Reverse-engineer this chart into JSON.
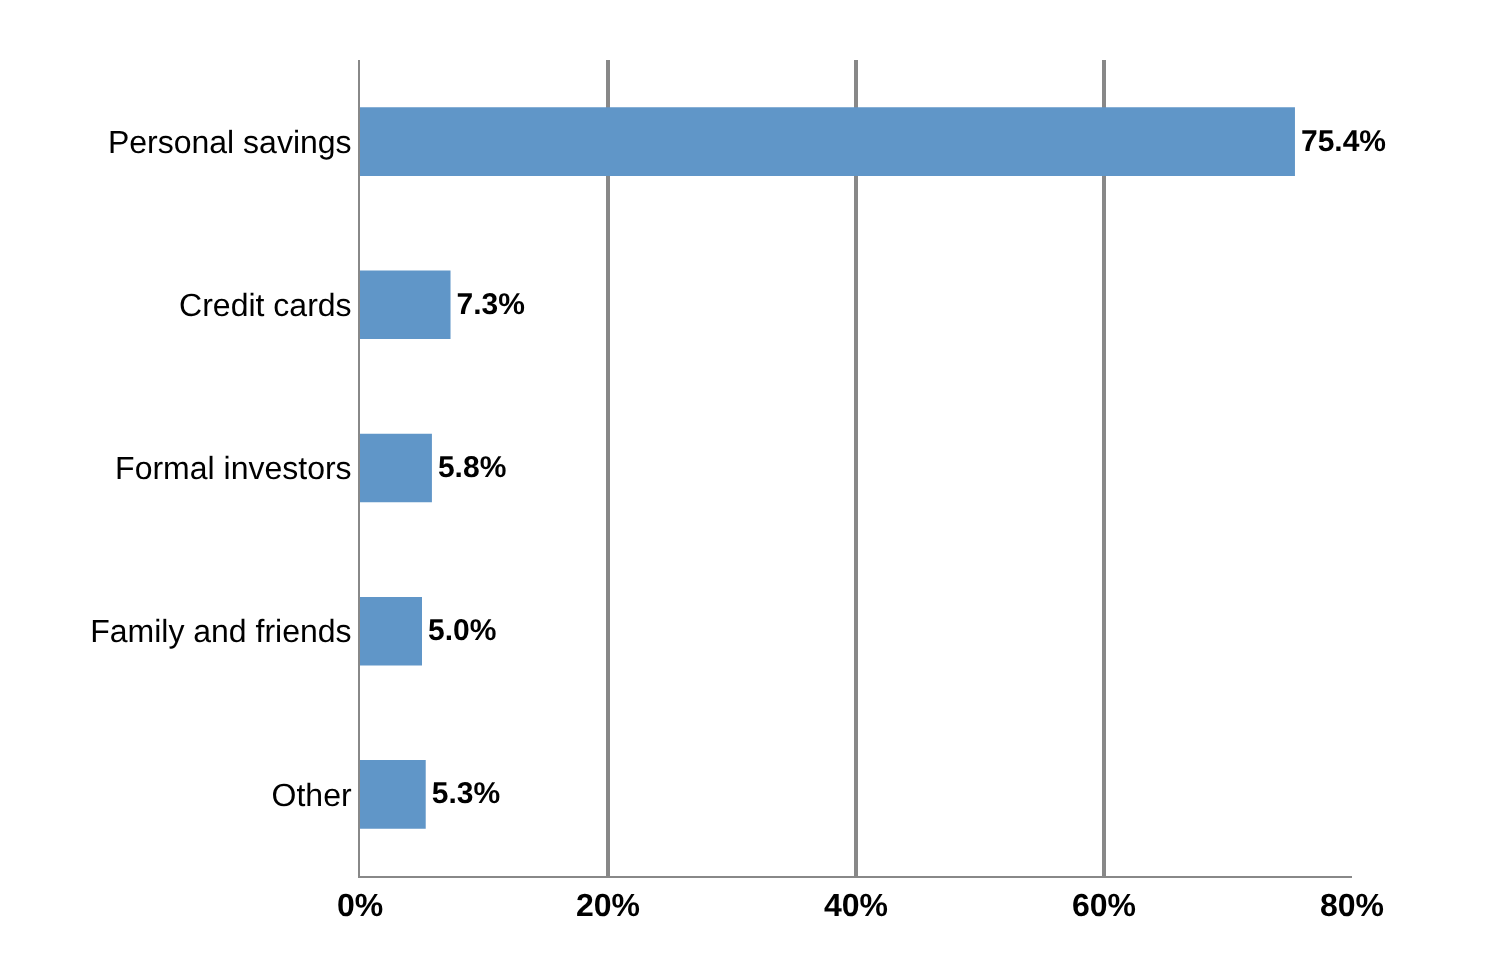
{
  "chart_data": {
    "type": "bar",
    "orientation": "horizontal",
    "categories": [
      "Personal savings",
      "Credit cards",
      "Formal investors",
      "Family and friends",
      "Other"
    ],
    "values": [
      75.4,
      7.3,
      5.8,
      5.0,
      5.3
    ],
    "value_labels": [
      "75.4%",
      "7.3%",
      "5.8%",
      "5.0%",
      "5.3%"
    ],
    "color": "#6096c8",
    "xlim": [
      0,
      80
    ],
    "xticks": [
      {
        "value": 0,
        "label": "0%"
      },
      {
        "value": 20,
        "label": "20%"
      },
      {
        "value": 40,
        "label": "40%"
      },
      {
        "value": 60,
        "label": "60%"
      },
      {
        "value": 80,
        "label": "80%"
      }
    ],
    "grid": "x",
    "legend": false
  }
}
